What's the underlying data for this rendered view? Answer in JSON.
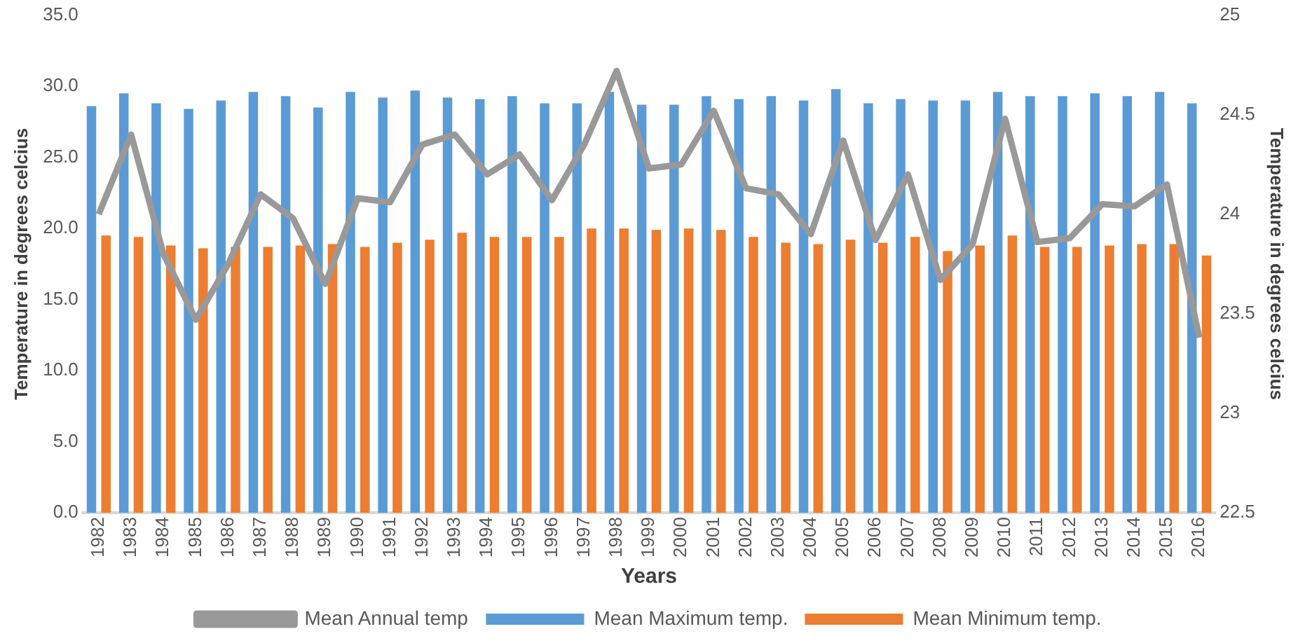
{
  "chart_data": {
    "type": "bar",
    "xlabel": "Years",
    "ylabel": "Temperature in degrees celcius",
    "y2label": "Temperature in degrees celcius",
    "categories": [
      "1982",
      "1983",
      "1984",
      "1985",
      "1986",
      "1987",
      "1988",
      "1989",
      "1990",
      "1991",
      "1992",
      "1993",
      "1994",
      "1995",
      "1996",
      "1997",
      "1998",
      "1999",
      "2000",
      "2001",
      "2002",
      "2003",
      "2004",
      "2005",
      "2006",
      "2007",
      "2008",
      "2009",
      "2010",
      "2011",
      "2012",
      "2013",
      "2014",
      "2015",
      "2016"
    ],
    "series": [
      {
        "name": "Mean Maximum temp.",
        "color": "#5b9bd5",
        "values": [
          28.6,
          29.5,
          28.8,
          28.4,
          29.0,
          29.6,
          29.3,
          28.5,
          29.6,
          29.2,
          29.7,
          29.2,
          29.1,
          29.3,
          28.8,
          28.8,
          29.6,
          28.7,
          28.7,
          29.3,
          29.1,
          29.3,
          29.0,
          29.8,
          28.8,
          29.1,
          29.0,
          29.0,
          29.6,
          29.3,
          29.3,
          29.5,
          29.3,
          29.6,
          28.8
        ]
      },
      {
        "name": "Mean Minimum temp.",
        "color": "#ed7d31",
        "values": [
          19.5,
          19.4,
          18.8,
          18.6,
          18.7,
          18.7,
          18.8,
          18.9,
          18.7,
          19.0,
          19.2,
          19.7,
          19.4,
          19.4,
          19.4,
          20.0,
          20.0,
          19.9,
          20.0,
          19.9,
          19.4,
          19.0,
          18.9,
          19.2,
          19.0,
          19.4,
          18.4,
          18.8,
          19.5,
          18.7,
          18.7,
          18.8,
          18.9,
          18.9,
          18.1
        ]
      },
      {
        "name": "Mean Annual temp",
        "type": "line",
        "axis": "y2",
        "color": "#999999",
        "values": [
          24.0,
          24.4,
          23.8,
          23.47,
          23.75,
          24.1,
          23.98,
          23.65,
          24.08,
          24.06,
          24.35,
          24.4,
          24.2,
          24.3,
          24.07,
          24.35,
          24.72,
          24.23,
          24.25,
          24.52,
          24.13,
          24.1,
          23.9,
          24.37,
          23.87,
          24.2,
          23.67,
          23.85,
          24.48,
          23.86,
          23.88,
          24.05,
          24.04,
          24.15,
          23.38
        ]
      }
    ],
    "ylim": [
      0,
      35
    ],
    "yticks": [
      {
        "value": 0,
        "label": "0.0"
      },
      {
        "value": 5,
        "label": "5.0"
      },
      {
        "value": 10,
        "label": "10.0"
      },
      {
        "value": 15,
        "label": "15.0"
      },
      {
        "value": 20,
        "label": "20.0"
      },
      {
        "value": 25,
        "label": "25.0"
      },
      {
        "value": 30,
        "label": "30.0"
      },
      {
        "value": 35,
        "label": "35.0"
      }
    ],
    "y2lim": [
      22.5,
      25
    ],
    "y2ticks": [
      22.5,
      23,
      23.5,
      24,
      24.5,
      25
    ],
    "grid": false,
    "legend": "bottom",
    "marker": "none"
  }
}
